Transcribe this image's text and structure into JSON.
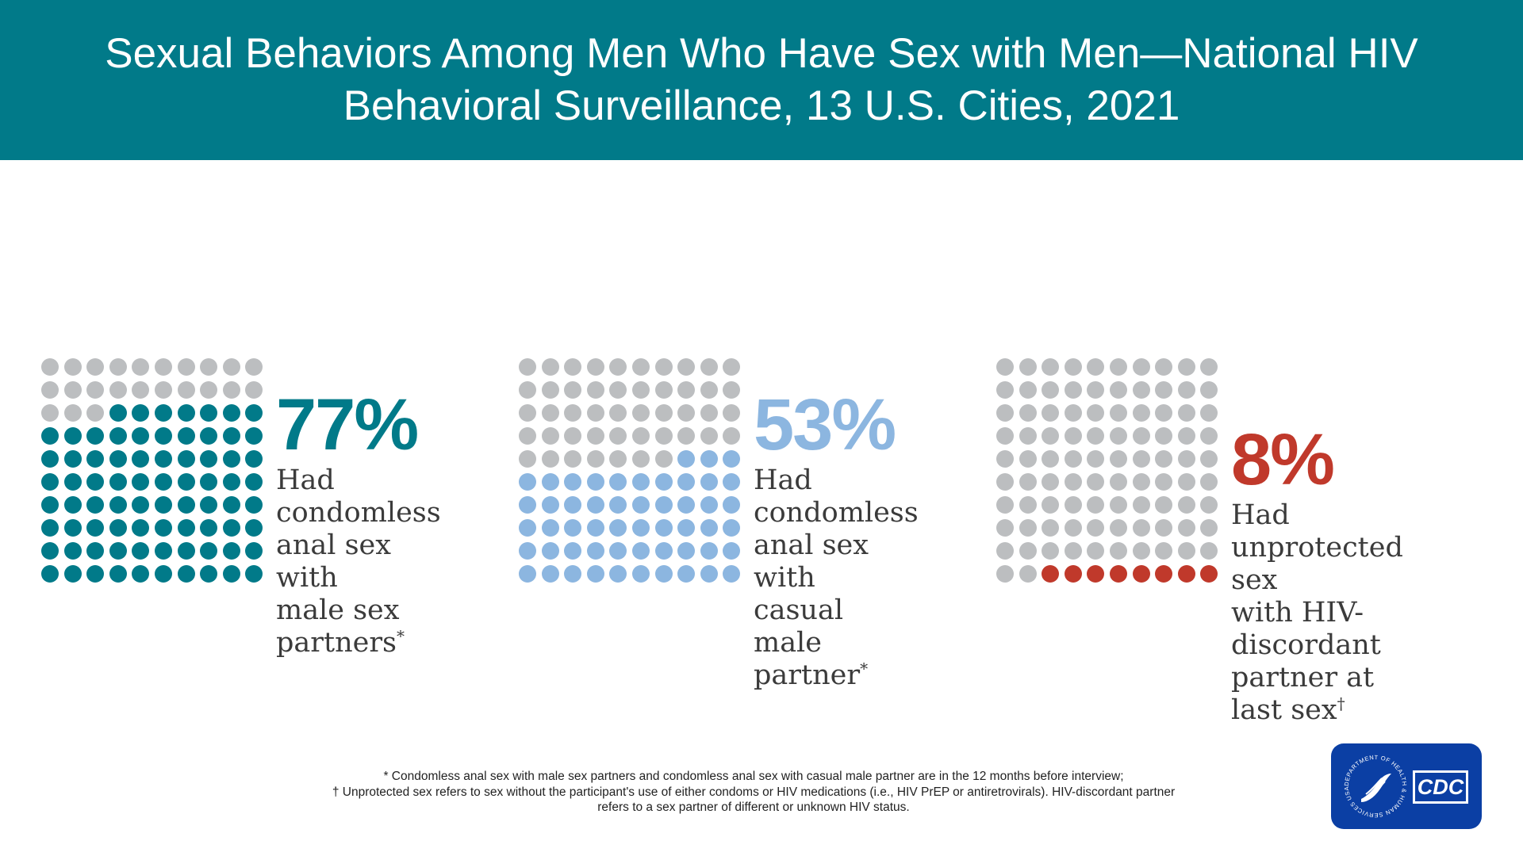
{
  "header": {
    "title_line1": "Sexual Behaviors Among Men Who Have Sex with Men—National HIV",
    "title_line2": "Behavioral Surveillance, 13 U.S. Cities, 2021"
  },
  "chart_data": [
    {
      "type": "waffle",
      "value": 77,
      "total": 100,
      "label": "77%",
      "desc_lines": [
        "Had condomless",
        "anal sex with",
        "male sex",
        "partners"
      ],
      "desc_mark": "*",
      "color": "#017a89",
      "empty_color": "#bcbec0"
    },
    {
      "type": "waffle",
      "value": 53,
      "total": 100,
      "label": "53%",
      "desc_lines": [
        "Had condomless",
        "anal sex with",
        "casual male",
        "partner"
      ],
      "desc_mark": "*",
      "color": "#8cb6e0",
      "empty_color": "#bcbec0"
    },
    {
      "type": "waffle",
      "value": 8,
      "total": 100,
      "label": "8%",
      "desc_lines": [
        "Had unprotected sex",
        "with HIV-discordant",
        "partner at last sex"
      ],
      "desc_mark": "†",
      "color": "#c0392b",
      "empty_color": "#bcbec0"
    }
  ],
  "footnotes": {
    "line1": "* Condomless anal sex with male sex partners and condomless anal sex with casual male partner are in the 12 months before interview;",
    "line2": "† Unprotected sex refers to sex without the participant's use of either condoms or HIV medications (i.e., HIV PrEP or antiretrovirals). HIV-discordant partner",
    "line3": "refers to a sex partner of different or unknown HIV status."
  },
  "logo": {
    "cdc_text": "CDC",
    "seal_text": "DEPARTMENT OF HEALTH & HUMAN SERVICES USA"
  }
}
